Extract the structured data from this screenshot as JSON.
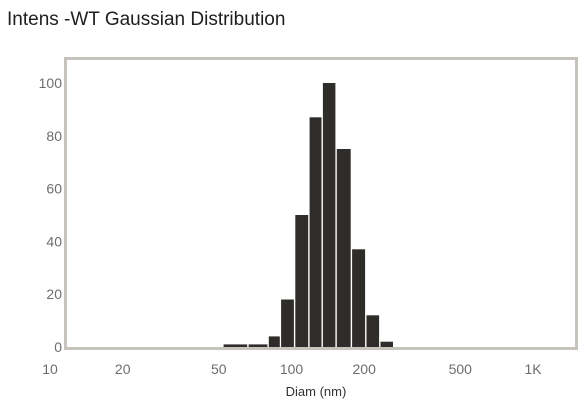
{
  "chart_data": {
    "type": "bar",
    "title": "Intens -WT Gaussian Distribution",
    "xlabel": "Diam (nm)",
    "ylabel": "",
    "x_scale": "log",
    "xlim": [
      10,
      2000
    ],
    "ylim": [
      0,
      100
    ],
    "grid": false,
    "x_ticks": [
      {
        "value": 10,
        "label": "10"
      },
      {
        "value": 20,
        "label": "20"
      },
      {
        "value": 50,
        "label": "50"
      },
      {
        "value": 100,
        "label": "100"
      },
      {
        "value": 200,
        "label": "200"
      },
      {
        "value": 500,
        "label": "500"
      },
      {
        "value": 1000,
        "label": "1K"
      }
    ],
    "y_ticks": [
      {
        "value": 0,
        "label": "0"
      },
      {
        "value": 20,
        "label": "20"
      },
      {
        "value": 40,
        "label": "40"
      },
      {
        "value": 60,
        "label": "60"
      },
      {
        "value": 80,
        "label": "80"
      },
      {
        "value": 100,
        "label": "100"
      }
    ],
    "bins": [
      {
        "from": 52,
        "to": 66,
        "value": 1
      },
      {
        "from": 66,
        "to": 80,
        "value": 1
      },
      {
        "from": 80,
        "to": 90,
        "value": 4
      },
      {
        "from": 90,
        "to": 103,
        "value": 18
      },
      {
        "from": 103,
        "to": 118,
        "value": 50
      },
      {
        "from": 118,
        "to": 134,
        "value": 87
      },
      {
        "from": 134,
        "to": 153,
        "value": 100
      },
      {
        "from": 153,
        "to": 177,
        "value": 75
      },
      {
        "from": 177,
        "to": 203,
        "value": 37
      },
      {
        "from": 203,
        "to": 232,
        "value": 12
      },
      {
        "from": 232,
        "to": 265,
        "value": 2
      }
    ],
    "colors": {
      "bar": "#2f2d2a",
      "frame": "#c6c2bc",
      "tick": "#6d6d6d",
      "title": "#1e1e1e"
    }
  }
}
